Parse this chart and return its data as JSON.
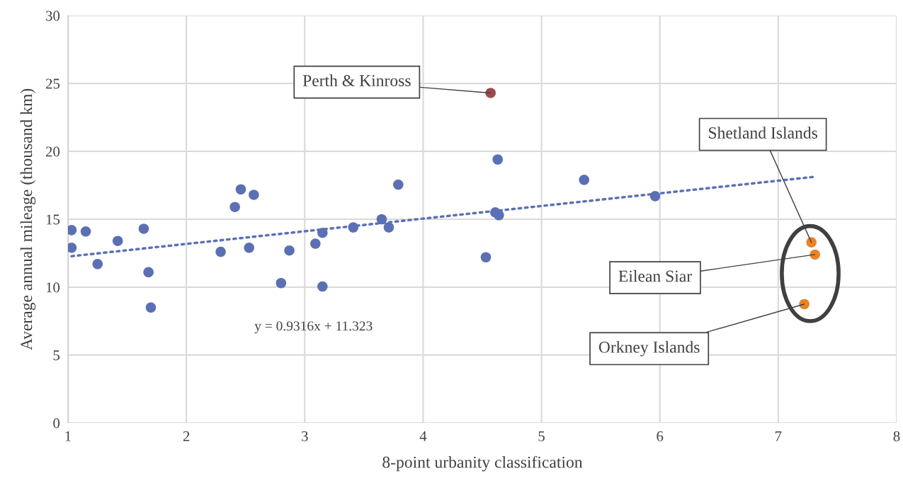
{
  "chart_data": {
    "type": "scatter",
    "xlabel": "8-point urbanity classification",
    "ylabel": "Average annual mileage (thousand km)",
    "xlim": [
      1,
      8
    ],
    "xticks": [
      1,
      2,
      3,
      4,
      5,
      6,
      7,
      8
    ],
    "ylim": [
      0,
      30
    ],
    "yticks": [
      0,
      5,
      10,
      15,
      20,
      25,
      30
    ],
    "grid": true,
    "legend": false,
    "marker": "circle",
    "series": [
      {
        "color": "#5b70b4",
        "x": [
          1.03,
          1.03,
          1.15,
          1.25,
          1.42,
          1.64,
          1.68,
          1.7,
          2.29,
          2.41,
          2.46,
          2.57,
          2.53,
          2.8,
          2.87,
          3.09,
          3.15,
          3.15,
          3.41,
          3.65,
          3.71,
          3.79,
          4.53,
          4.61,
          4.64,
          4.63,
          5.36,
          5.96
        ],
        "values": [
          14.2,
          12.9,
          14.1,
          11.7,
          13.4,
          14.3,
          11.1,
          8.5,
          12.6,
          15.9,
          17.2,
          16.8,
          12.9,
          10.3,
          12.7,
          13.2,
          14.0,
          10.05,
          14.4,
          15.0,
          14.4,
          17.55,
          12.2,
          15.5,
          15.3,
          19.4,
          17.9,
          16.7
        ]
      },
      {
        "color": "#9e4b4b",
        "x": [
          4.57
        ],
        "values": [
          24.3
        ]
      },
      {
        "color": "#e6842a",
        "x": [
          7.28,
          7.31,
          7.22
        ],
        "values": [
          13.3,
          12.4,
          8.75
        ]
      },
      {
        "type": "line",
        "color": "#5b70b4",
        "line_style": "dotted",
        "marker": "none",
        "x": [
          1.03,
          7.3
        ],
        "values": [
          12.28,
          18.12
        ]
      }
    ],
    "annotations": [
      {
        "text": "Perth & Kinross",
        "x": 4.57,
        "y": 24.3
      },
      {
        "text": "Shetland Islands",
        "x": 7.28,
        "y": 13.3
      },
      {
        "text": "Eilean Siar",
        "x": 7.31,
        "y": 12.4
      },
      {
        "text": "Orkney Islands",
        "x": 7.22,
        "y": 8.75
      },
      "y = 0.9316x + 11.323"
    ]
  }
}
